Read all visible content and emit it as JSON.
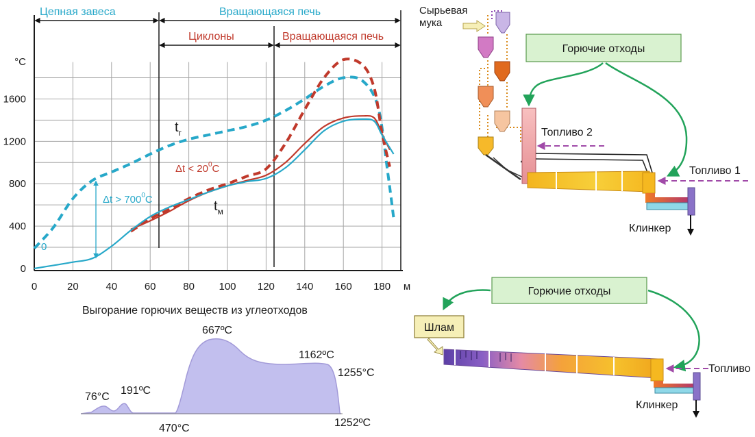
{
  "colors": {
    "teal": "#27a8c9",
    "red": "#c0392b",
    "grid": "#a6a6a6",
    "axis": "#1a1a1a",
    "green_box": "#d9f2d0",
    "green_border": "#5a9a4e",
    "green_arrow": "#22a35a",
    "purple_dash": "#a04aa8",
    "burnout_fill": "#c2bfee",
    "burnout_stroke": "#a29ad8",
    "slurry_box": "#f6efb7"
  },
  "chart_data": [
    {
      "type": "line",
      "title": "",
      "xlabel": "м",
      "ylabel": "°C",
      "xlim": [
        0,
        190
      ],
      "ylim": [
        0,
        2000
      ],
      "x_ticks": [
        "0",
        "20",
        "40",
        "60",
        "80",
        "100",
        "120",
        "140",
        "160",
        "180",
        "м"
      ],
      "y_ticks": [
        "0",
        "400",
        "800",
        "1200",
        "1600",
        "°C"
      ],
      "zones": {
        "chain_curtain": "Цепная завеса",
        "rotary_kiln_top": "Вращающаяся печь",
        "cyclones": "Циклоны",
        "rotary_kiln_cyclone": "Вращающаяся печь"
      },
      "series": [
        {
          "name": "tг (wet process)",
          "style": "dashed-teal",
          "points": [
            [
              0,
              190
            ],
            [
              10,
              390
            ],
            [
              20,
              660
            ],
            [
              30,
              830
            ],
            [
              40,
              910
            ],
            [
              50,
              990
            ],
            [
              60,
              1080
            ],
            [
              70,
              1160
            ],
            [
              80,
              1220
            ],
            [
              90,
              1260
            ],
            [
              100,
              1300
            ],
            [
              110,
              1340
            ],
            [
              120,
              1400
            ],
            [
              130,
              1490
            ],
            [
              140,
              1600
            ],
            [
              150,
              1720
            ],
            [
              160,
              1800
            ],
            [
              170,
              1770
            ],
            [
              178,
              1520
            ],
            [
              183,
              900
            ],
            [
              186,
              480
            ]
          ]
        },
        {
          "name": "tг (cyclone)",
          "style": "dashed-red",
          "points": [
            [
              50,
              350
            ],
            [
              60,
              470
            ],
            [
              70,
              560
            ],
            [
              80,
              660
            ],
            [
              90,
              740
            ],
            [
              100,
              800
            ],
            [
              110,
              870
            ],
            [
              120,
              940
            ],
            [
              130,
              1180
            ],
            [
              140,
              1500
            ],
            [
              150,
              1800
            ],
            [
              160,
              1970
            ],
            [
              170,
              1920
            ],
            [
              176,
              1700
            ],
            [
              180,
              1280
            ],
            [
              184,
              960
            ]
          ]
        },
        {
          "name": "tм (cyclone)",
          "style": "solid-red",
          "points": [
            [
              50,
              370
            ],
            [
              60,
              450
            ],
            [
              70,
              540
            ],
            [
              80,
              640
            ],
            [
              90,
              720
            ],
            [
              100,
              780
            ],
            [
              110,
              830
            ],
            [
              120,
              880
            ],
            [
              130,
              1000
            ],
            [
              140,
              1180
            ],
            [
              150,
              1340
            ],
            [
              160,
              1420
            ],
            [
              170,
              1440
            ],
            [
              176,
              1420
            ],
            [
              180,
              1270
            ],
            [
              184,
              1120
            ]
          ]
        },
        {
          "name": "tм (wet process)",
          "style": "solid-teal",
          "points": [
            [
              0,
              0
            ],
            [
              10,
              30
            ],
            [
              20,
              60
            ],
            [
              30,
              95
            ],
            [
              40,
              210
            ],
            [
              50,
              360
            ],
            [
              60,
              490
            ],
            [
              70,
              580
            ],
            [
              80,
              650
            ],
            [
              90,
              720
            ],
            [
              100,
              780
            ],
            [
              110,
              820
            ],
            [
              120,
              850
            ],
            [
              130,
              950
            ],
            [
              140,
              1120
            ],
            [
              150,
              1300
            ],
            [
              160,
              1390
            ],
            [
              170,
              1410
            ],
            [
              176,
              1390
            ],
            [
              180,
              1260
            ],
            [
              186,
              1080
            ]
          ]
        }
      ],
      "annotations": {
        "t_g": "t",
        "t_g_sub": "г",
        "t_m": "t",
        "t_m_sub": "м",
        "dt_large": "Δt > 700",
        "dt_large_sup": "0",
        "dt_large_unit": "C",
        "dt_small": "Δt < 20",
        "dt_small_sup": "0",
        "dt_small_unit": "C",
        "zero_label": "0"
      }
    },
    {
      "type": "area",
      "title": "Выгорание горючих веществ из углеотходов",
      "labels": [
        "76°C",
        "191ºC",
        "667ºC",
        "1162ºC",
        "1255°C",
        "470°C",
        "1252ºC"
      ],
      "note": "qualitative burnout profile with two small early peaks and a large plateau"
    }
  ],
  "schemes": {
    "cyclone": {
      "raw_meal": "Сырьевая\nмука",
      "raw_meal_1": "Сырьевая",
      "raw_meal_2": "мука",
      "waste_box": "Горючие отходы",
      "fuel_2": "Топливо 2",
      "fuel_1": "Топливо 1",
      "clinker": "Клинкер"
    },
    "wet": {
      "waste_box": "Горючие отходы",
      "slurry": "Шлам",
      "fuel": "Топливо",
      "clinker": "Клинкер"
    }
  }
}
